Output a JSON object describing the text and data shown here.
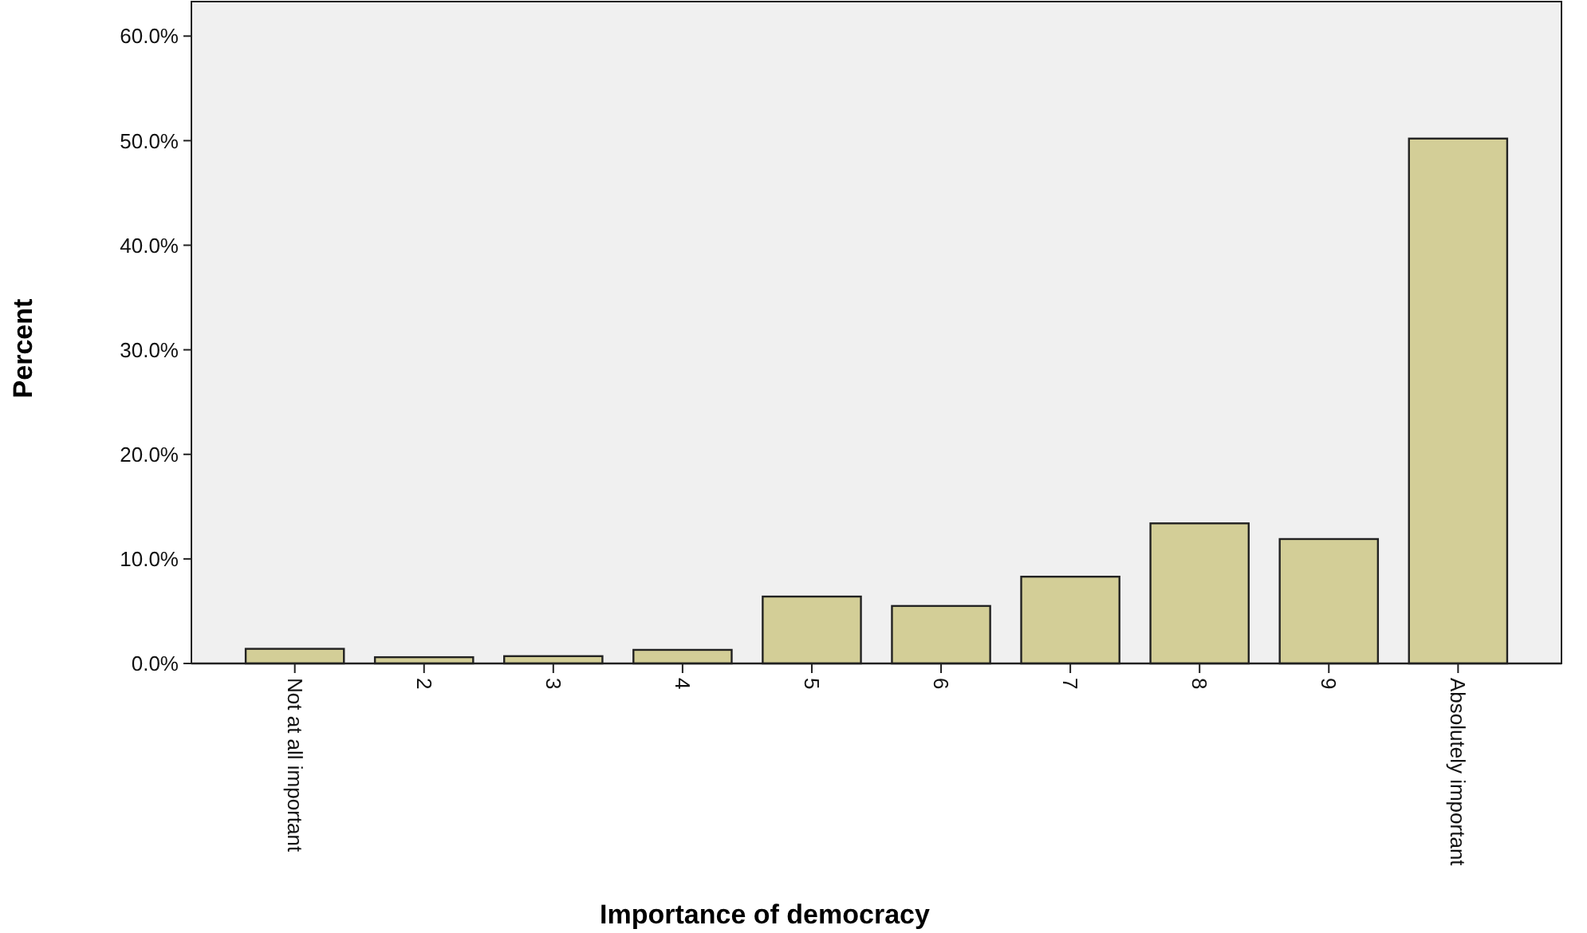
{
  "chart_data": {
    "type": "bar",
    "xlabel": "Importance of democracy",
    "ylabel": "Percent",
    "categories": [
      "Not at all important",
      "2",
      "3",
      "4",
      "5",
      "6",
      "7",
      "8",
      "9",
      "Absolutely important"
    ],
    "values": [
      1.4,
      0.6,
      0.7,
      1.3,
      6.4,
      5.5,
      8.3,
      13.4,
      11.9,
      50.2
    ],
    "color": "#d3ce97",
    "ylim": [
      0,
      63.3
    ],
    "yticks": [
      {
        "value": 0,
        "label": "0.0%"
      },
      {
        "value": 10,
        "label": "10.0%"
      },
      {
        "value": 20,
        "label": "20.0%"
      },
      {
        "value": 30,
        "label": "30.0%"
      },
      {
        "value": 40,
        "label": "40.0%"
      },
      {
        "value": 50,
        "label": "50.0%"
      },
      {
        "value": 60,
        "label": "60.0%"
      }
    ],
    "grid": false
  }
}
